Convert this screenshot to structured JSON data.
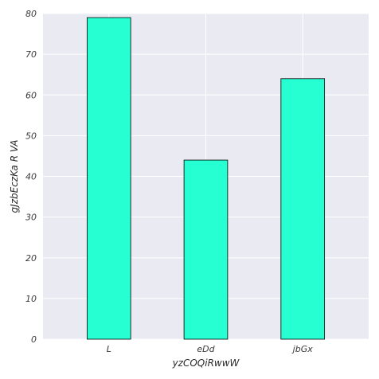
{
  "chart_data": {
    "type": "bar",
    "categories": [
      "L",
      "eDd",
      "jbGx"
    ],
    "values": [
      79,
      44,
      64
    ],
    "xlabel": "yzCOQiRwwW",
    "ylabel": "gJzbEczKa R VA",
    "ylim": [
      0,
      80
    ],
    "yticks": [
      0,
      10,
      20,
      30,
      40,
      50,
      60,
      70,
      80
    ],
    "grid": true,
    "colors": {
      "bar_fill": "#26ffd1",
      "bar_edge": "#000000",
      "plot_background": "#eaeaf2",
      "grid": "#ffffff"
    }
  }
}
